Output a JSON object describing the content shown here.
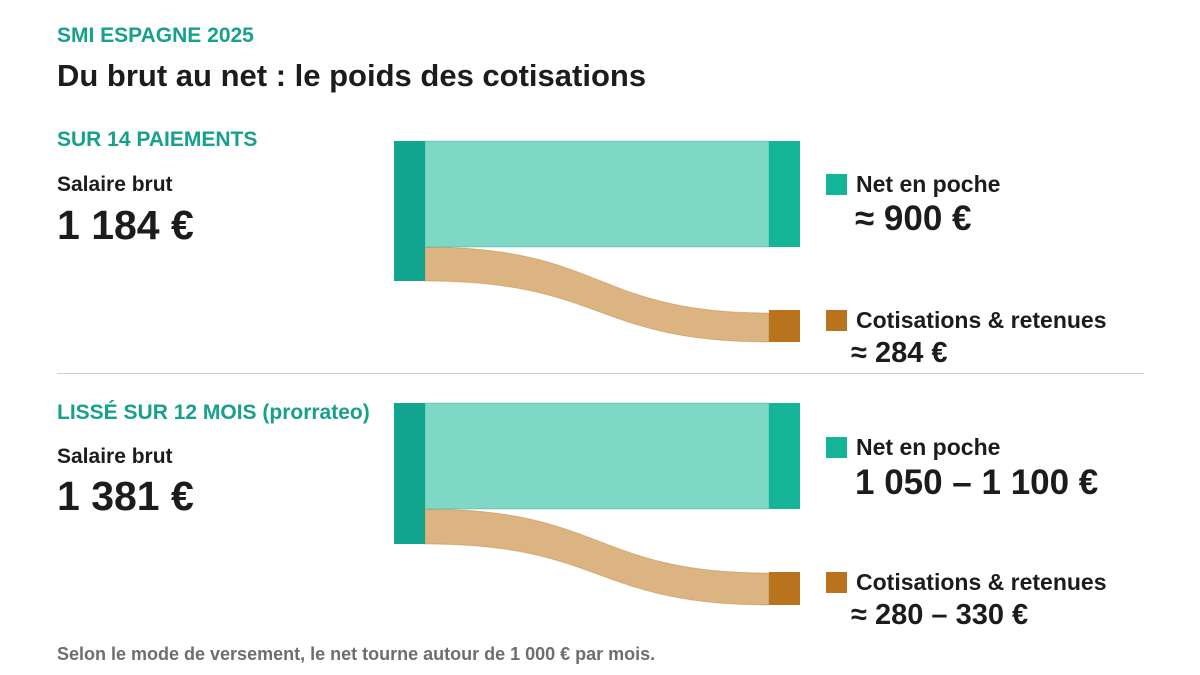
{
  "header": {
    "kicker": "SMI ESPAGNE 2025",
    "title": "Du brut au net : le poids des cotisations"
  },
  "colors": {
    "teal_node": "#12a58f",
    "teal_node_right": "#13b497",
    "teal_flow": "#7fd8c5",
    "teal_text": "#17a08c",
    "orange_node": "#b8731c",
    "orange_flow": "#dbb482",
    "text": "#1c1c1c",
    "muted": "#6e6e6e"
  },
  "sections": [
    {
      "label": "SUR 14 PAIEMENTS",
      "gross_label": "Salaire brut",
      "gross_value": "1 184 €",
      "net_label": "Net en poche",
      "net_value": "≈ 900 €",
      "deductions_label": "Cotisations & retenues",
      "deductions_value": "≈ 284 €"
    },
    {
      "label": "LISSÉ SUR 12 MOIS (prorrateo)",
      "gross_label": "Salaire brut",
      "gross_value": "1 381 €",
      "net_label": "Net en poche",
      "net_value": "1 050 – 1 100 €",
      "deductions_label": "Cotisations & retenues",
      "deductions_value": "≈ 280 – 330 €"
    }
  ],
  "footnote": "Selon le mode de versement, le net tourne autour de 1 000 € par mois."
}
